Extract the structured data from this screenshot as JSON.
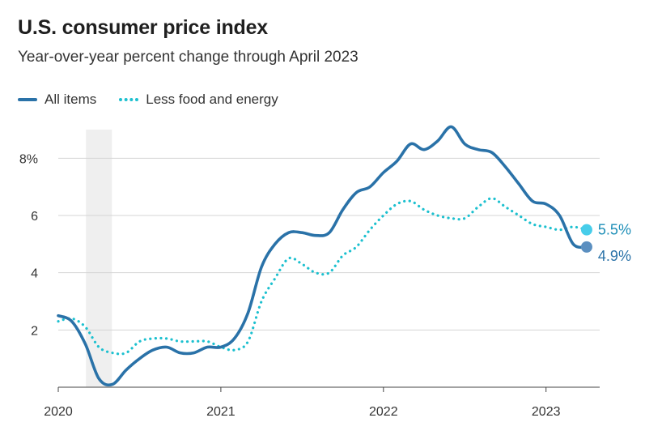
{
  "chart_data": {
    "type": "line",
    "title": "U.S. consumer price index",
    "subtitle": "Year-over-year percent change through April 2023",
    "ylim": [
      0,
      9
    ],
    "yticks": [
      2,
      4,
      6,
      8
    ],
    "ytick_labels": [
      "2",
      "4",
      "6",
      "8%"
    ],
    "xlim": [
      2020.0,
      2023.33
    ],
    "xticks": [
      2020,
      2021,
      2022,
      2023
    ],
    "xtick_labels": [
      "2020",
      "2021",
      "2022",
      "2023"
    ],
    "grid": "horizontal",
    "legend": "top-left",
    "recession_shade": [
      2020.17,
      2020.33
    ],
    "colors": {
      "all_items": "#2a72a8",
      "core": "#1cc0cf",
      "end_all": "#5b8fc0",
      "end_core": "#47cdea",
      "label_all": "#2a72a8",
      "label_core": "#1f8fb8"
    },
    "series": [
      {
        "name": "All items",
        "style": "solid",
        "x": [
          2020.0,
          2020.083,
          2020.167,
          2020.25,
          2020.333,
          2020.417,
          2020.5,
          2020.583,
          2020.667,
          2020.75,
          2020.833,
          2020.917,
          2021.0,
          2021.083,
          2021.167,
          2021.25,
          2021.333,
          2021.417,
          2021.5,
          2021.583,
          2021.667,
          2021.75,
          2021.833,
          2021.917,
          2022.0,
          2022.083,
          2022.167,
          2022.25,
          2022.333,
          2022.417,
          2022.5,
          2022.583,
          2022.667,
          2022.75,
          2022.833,
          2022.917,
          2023.0,
          2023.083,
          2023.167,
          2023.25
        ],
        "values": [
          2.5,
          2.3,
          1.5,
          0.3,
          0.1,
          0.6,
          1.0,
          1.3,
          1.4,
          1.2,
          1.2,
          1.4,
          1.4,
          1.7,
          2.6,
          4.2,
          5.0,
          5.4,
          5.4,
          5.3,
          5.4,
          6.2,
          6.8,
          7.0,
          7.5,
          7.9,
          8.5,
          8.3,
          8.6,
          9.1,
          8.5,
          8.3,
          8.2,
          7.7,
          7.1,
          6.5,
          6.4,
          6.0,
          5.0,
          4.9
        ],
        "end_label": "4.9%"
      },
      {
        "name": "Less food and energy",
        "style": "dotted",
        "x": [
          2020.0,
          2020.083,
          2020.167,
          2020.25,
          2020.333,
          2020.417,
          2020.5,
          2020.583,
          2020.667,
          2020.75,
          2020.833,
          2020.917,
          2021.0,
          2021.083,
          2021.167,
          2021.25,
          2021.333,
          2021.417,
          2021.5,
          2021.583,
          2021.667,
          2021.75,
          2021.833,
          2021.917,
          2022.0,
          2022.083,
          2022.167,
          2022.25,
          2022.333,
          2022.417,
          2022.5,
          2022.583,
          2022.667,
          2022.75,
          2022.833,
          2022.917,
          2023.0,
          2023.083,
          2023.167,
          2023.25
        ],
        "values": [
          2.3,
          2.4,
          2.1,
          1.4,
          1.2,
          1.2,
          1.6,
          1.7,
          1.7,
          1.6,
          1.6,
          1.6,
          1.4,
          1.3,
          1.6,
          3.0,
          3.8,
          4.5,
          4.3,
          4.0,
          4.0,
          4.6,
          4.9,
          5.5,
          6.0,
          6.4,
          6.5,
          6.2,
          6.0,
          5.9,
          5.9,
          6.3,
          6.6,
          6.3,
          6.0,
          5.7,
          5.6,
          5.5,
          5.6,
          5.5
        ],
        "end_label": "5.5%"
      }
    ]
  }
}
